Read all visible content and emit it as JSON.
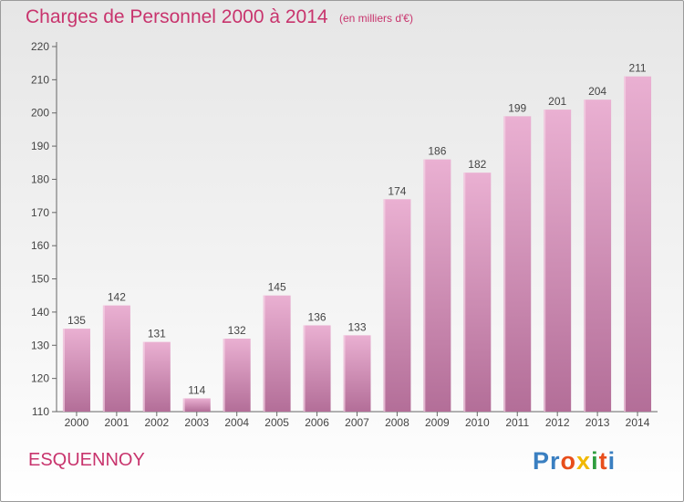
{
  "header": {
    "title": "Charges de Personnel 2000 à 2014",
    "subtitle": "(en milliers d'€)"
  },
  "footer": {
    "commune": "ESQUENNOY",
    "logo": [
      "P",
      "r",
      "o",
      "x",
      "i",
      "t",
      "i"
    ]
  },
  "colors": {
    "accent": "#c8346d",
    "bar_light": "#eab0d2",
    "bar_dark": "#b36e98",
    "logo": [
      "#3a7fc1",
      "#3a7fc1",
      "#e84e1b",
      "#f1b800",
      "#2f9e3f",
      "#e84e1b",
      "#3a7fc1"
    ]
  },
  "chart_data": {
    "type": "bar",
    "categories": [
      "2000",
      "2001",
      "2002",
      "2003",
      "2004",
      "2005",
      "2006",
      "2007",
      "2008",
      "2009",
      "2010",
      "2011",
      "2012",
      "2013",
      "2014"
    ],
    "values": [
      135,
      142,
      131,
      114,
      132,
      145,
      136,
      133,
      174,
      186,
      182,
      199,
      201,
      204,
      211
    ],
    "title": "Charges de Personnel 2000 à 2014",
    "xlabel": "",
    "ylabel": "",
    "ylim": [
      110,
      220
    ],
    "yticks": [
      110,
      120,
      130,
      140,
      150,
      160,
      170,
      180,
      190,
      200,
      210,
      220
    ],
    "grid": false,
    "legend": "none"
  }
}
